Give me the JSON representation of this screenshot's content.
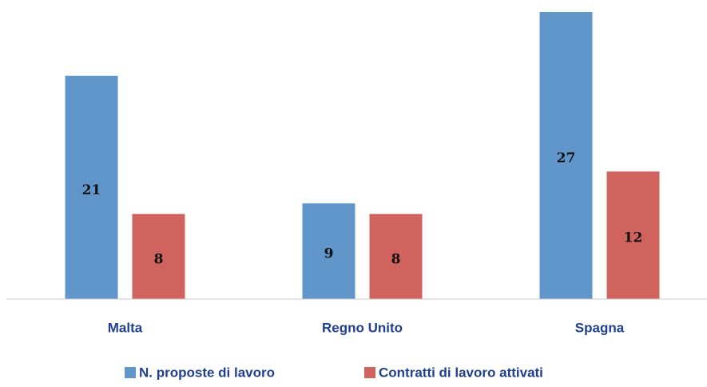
{
  "chart_data": {
    "type": "bar",
    "categories": [
      "Malta",
      "Regno Unito",
      "Spagna"
    ],
    "series": [
      {
        "name": "N. proposte di lavoro",
        "color": "#6096c9",
        "values": [
          21,
          9,
          27
        ]
      },
      {
        "name": "Contratti di lavoro attivati",
        "color": "#d0635d",
        "values": [
          8,
          8,
          12
        ]
      }
    ],
    "ylim": [
      0,
      27
    ],
    "legend": "bottom"
  }
}
